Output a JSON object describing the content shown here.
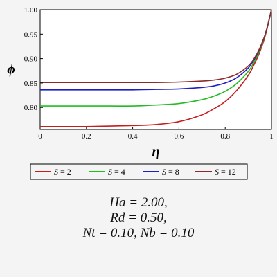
{
  "colors": {
    "background": "#f4f4f4",
    "plot_background": "#ffffff",
    "axis": "#000000",
    "s2": "#c41e1e",
    "s4": "#22bb22",
    "s8": "#1e1ec4",
    "s12": "#8b2a2a"
  },
  "chart_data": {
    "type": "line",
    "title": "",
    "xlabel": "η",
    "ylabel": "ϕ",
    "xlim": [
      0,
      1
    ],
    "ylim": [
      0.755,
      1.0
    ],
    "x_ticks": [
      "0",
      "0.2",
      "0.4",
      "0.6",
      "0.8",
      "1"
    ],
    "y_ticks": [
      "0.80",
      "0.85",
      "0.90",
      "0.95",
      "1.00"
    ],
    "x": [
      0,
      0.1,
      0.2,
      0.3,
      0.4,
      0.5,
      0.6,
      0.7,
      0.75,
      0.8,
      0.85,
      0.9,
      0.925,
      0.95,
      0.975,
      1.0
    ],
    "series": [
      {
        "name": "S = 2",
        "color_key": "s2",
        "values": [
          0.761,
          0.761,
          0.761,
          0.762,
          0.763,
          0.765,
          0.771,
          0.785,
          0.797,
          0.812,
          0.835,
          0.866,
          0.888,
          0.914,
          0.95,
          1.0
        ]
      },
      {
        "name": "S = 4",
        "color_key": "s4",
        "values": [
          0.803,
          0.803,
          0.803,
          0.803,
          0.803,
          0.805,
          0.808,
          0.816,
          0.823,
          0.833,
          0.849,
          0.874,
          0.893,
          0.918,
          0.952,
          1.0
        ]
      },
      {
        "name": "S = 8",
        "color_key": "s8",
        "values": [
          0.836,
          0.836,
          0.836,
          0.836,
          0.836,
          0.837,
          0.838,
          0.841,
          0.844,
          0.85,
          0.861,
          0.881,
          0.898,
          0.921,
          0.953,
          1.0
        ]
      },
      {
        "name": "S = 12",
        "color_key": "s12",
        "values": [
          0.851,
          0.851,
          0.851,
          0.851,
          0.851,
          0.851,
          0.852,
          0.854,
          0.856,
          0.86,
          0.868,
          0.885,
          0.9,
          0.922,
          0.953,
          1.0
        ]
      }
    ],
    "legend": {
      "placement": "bottom",
      "entries": [
        {
          "prefix": "S",
          "value": " = 2",
          "color_key": "s2"
        },
        {
          "prefix": "S",
          "value": " = 4",
          "color_key": "s4"
        },
        {
          "prefix": "S",
          "value": " = 8",
          "color_key": "s8"
        },
        {
          "prefix": "S",
          "value": " = 12",
          "color_key": "s12"
        }
      ]
    },
    "grid": false
  },
  "annotation": {
    "line1": "Ha = 2.00,",
    "line2": "Rd = 0.50,",
    "line3": "Nt = 0.10, Nb = 0.10"
  }
}
